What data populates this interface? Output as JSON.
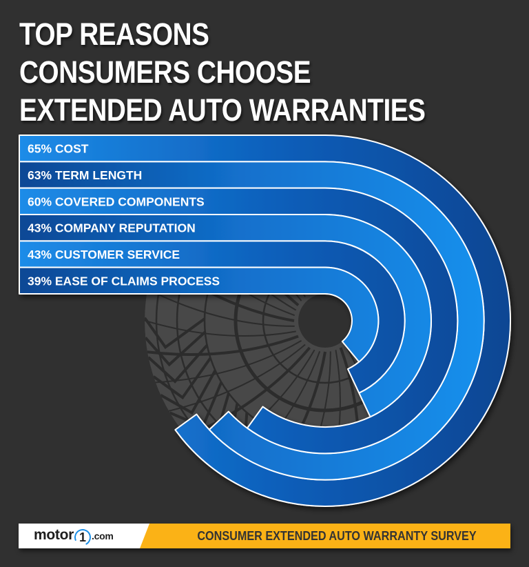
{
  "title": {
    "lines": [
      "TOP REASONS",
      "CONSUMERS CHOOSE",
      "EXTENDED AUTO WARRANTIES"
    ]
  },
  "colors": {
    "background": "#303030",
    "light_blue": "#1a8fe8",
    "dark_blue": "#0a4895",
    "separator": "#ffffff",
    "tire": "#484848",
    "tire_tread": "#2e2e2e",
    "footer_yellow": "#fbb216",
    "footer_text": "#333333"
  },
  "chart_data": {
    "type": "radial-bar",
    "title": "Top Reasons Consumers Choose Extended Auto Warranties",
    "unit": "%",
    "max": 100,
    "categories": [
      "Cost",
      "Term Length",
      "Covered Components",
      "Company Reputation",
      "Customer Service",
      "Ease of Claims Process"
    ],
    "values": [
      65,
      63,
      60,
      43,
      43,
      39
    ],
    "labels": [
      "65% COST",
      "63% TERM LENGTH",
      "60% COVERED COMPONENTS",
      "43% COMPANY REPUTATION",
      "43% CUSTOMER SERVICE",
      "39% EASE OF CLAIMS PROCESS"
    ],
    "legend": "none",
    "grid": false
  },
  "footer": {
    "logo_prefix": "motor",
    "logo_number": "1",
    "logo_suffix": ".com",
    "survey_title": "CONSUMER EXTENDED AUTO WARRANTY SURVEY"
  }
}
